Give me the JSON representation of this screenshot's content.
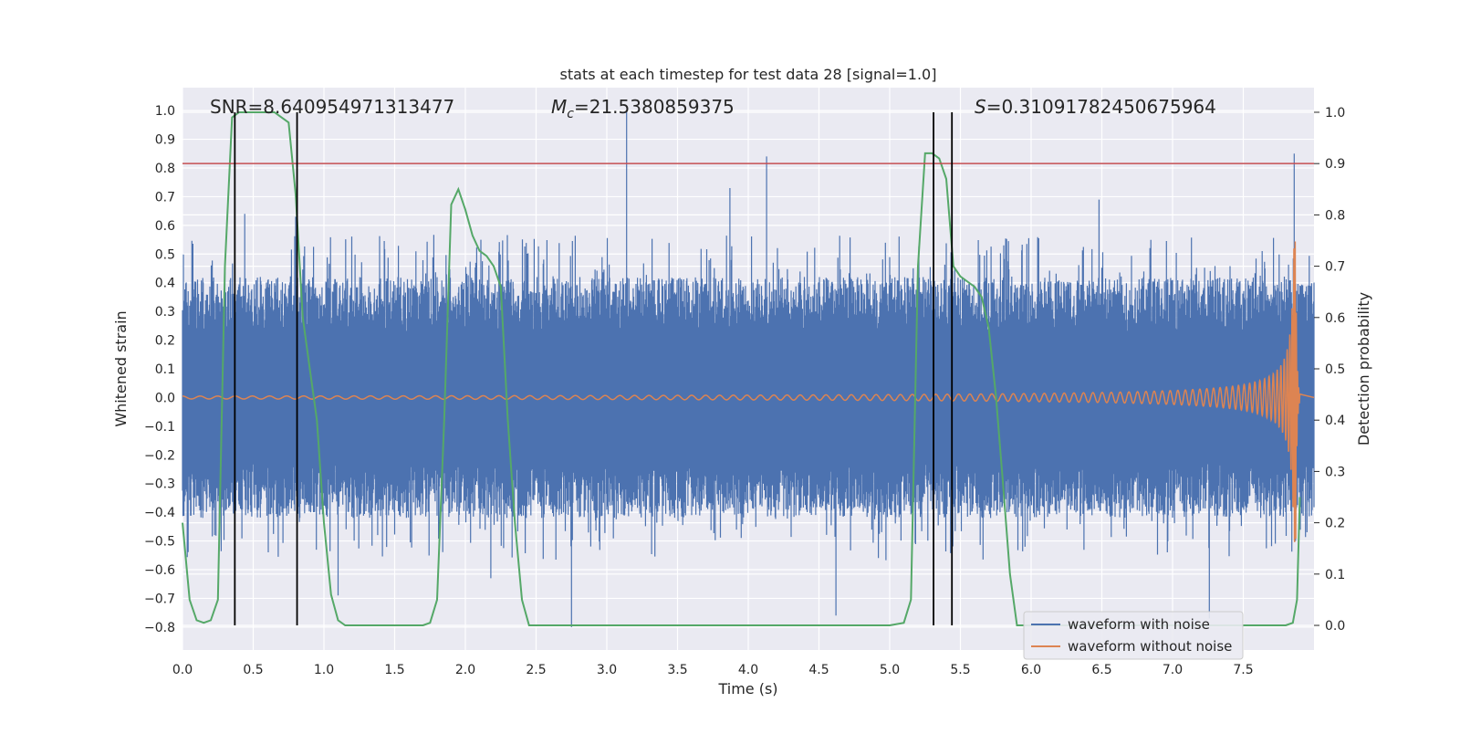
{
  "chart_data": {
    "type": "line",
    "title": "stats at each timestep for test data 28 [signal=1.0]",
    "xlabel": "Time (s)",
    "ylabel": "Whitened strain",
    "y2label": "Detection probability",
    "xlim": [
      0.0,
      8.0
    ],
    "ylim": [
      -0.88,
      1.08
    ],
    "y2lim": [
      -0.048,
      1.048
    ],
    "x_ticks": [
      "0.0",
      "0.5",
      "1.0",
      "1.5",
      "2.0",
      "2.5",
      "3.0",
      "3.5",
      "4.0",
      "4.5",
      "5.0",
      "5.5",
      "6.0",
      "6.5",
      "7.0",
      "7.5"
    ],
    "y_ticks": [
      "−0.8",
      "−0.7",
      "−0.6",
      "−0.5",
      "−0.4",
      "−0.3",
      "−0.2",
      "−0.1",
      "0.0",
      "0.1",
      "0.2",
      "0.3",
      "0.4",
      "0.5",
      "0.6",
      "0.7",
      "0.8",
      "0.9",
      "1.0"
    ],
    "y2_ticks": [
      "0.0",
      "0.1",
      "0.2",
      "0.3",
      "0.4",
      "0.5",
      "0.6",
      "0.7",
      "0.8",
      "0.9",
      "1.0"
    ],
    "grid": true,
    "legend_position": "lower-right",
    "annotations": {
      "snr": "SNR=8.640954971313477",
      "mc_symbol": "M",
      "mc_sub": "c",
      "mc_value": "=21.5380859375",
      "s_symbol": "S",
      "s_value": "=0.31091782450675964"
    },
    "threshold_probability": 0.9,
    "detection_windows": [
      [
        0.37,
        0.81
      ],
      [
        5.31,
        5.44
      ]
    ],
    "series": [
      {
        "name": "waveform with noise",
        "color": "#4c72b0",
        "style": "noise",
        "x_range": [
          0.0,
          8.0
        ],
        "typical_band": [
          -0.42,
          0.42
        ],
        "peaks": [
          {
            "x": 0.05,
            "y": 0.3
          },
          {
            "x": 0.44,
            "y": 0.64
          },
          {
            "x": 0.8,
            "y": 0.63
          },
          {
            "x": 1.1,
            "y": -0.69
          },
          {
            "x": 2.11,
            "y": 0.55
          },
          {
            "x": 2.18,
            "y": -0.63
          },
          {
            "x": 2.75,
            "y": -0.8
          },
          {
            "x": 3.14,
            "y": 1.0
          },
          {
            "x": 3.87,
            "y": 0.73
          },
          {
            "x": 4.13,
            "y": 0.84
          },
          {
            "x": 4.62,
            "y": -0.76
          },
          {
            "x": 6.48,
            "y": 0.69
          },
          {
            "x": 7.26,
            "y": -0.77
          },
          {
            "x": 7.86,
            "y": 0.85
          },
          {
            "x": 7.87,
            "y": -0.5
          }
        ]
      },
      {
        "name": "waveform without noise",
        "color": "#dd8452",
        "style": "chirp",
        "x_range": [
          0.0,
          7.9
        ],
        "amplitude_start": 0.005,
        "amplitude_peak": 0.56,
        "merger_time": 7.87
      },
      {
        "name": "Detection probability",
        "color": "#55a868",
        "axis": "right",
        "x": [
          0.0,
          0.05,
          0.1,
          0.15,
          0.2,
          0.25,
          0.3,
          0.35,
          0.4,
          0.45,
          0.5,
          0.55,
          0.6,
          0.65,
          0.7,
          0.75,
          0.8,
          0.85,
          0.9,
          0.95,
          1.0,
          1.05,
          1.1,
          1.15,
          1.2,
          1.25,
          1.3,
          1.35,
          1.4,
          1.5,
          1.6,
          1.7,
          1.75,
          1.8,
          1.85,
          1.9,
          1.95,
          2.0,
          2.05,
          2.1,
          2.15,
          2.2,
          2.25,
          2.3,
          2.35,
          2.4,
          2.45,
          2.5,
          2.55,
          2.6,
          2.65,
          2.7,
          2.8,
          3.0,
          3.5,
          4.0,
          4.5,
          5.0,
          5.1,
          5.15,
          5.2,
          5.25,
          5.3,
          5.35,
          5.4,
          5.45,
          5.5,
          5.55,
          5.6,
          5.65,
          5.7,
          5.75,
          5.8,
          5.85,
          5.9,
          5.95,
          6.0,
          6.05,
          6.1,
          6.2,
          6.5,
          7.0,
          7.5,
          7.8,
          7.85,
          7.88,
          7.9
        ],
        "y": [
          0.2,
          0.05,
          0.01,
          0.005,
          0.01,
          0.05,
          0.7,
          0.99,
          1.0,
          1.0,
          1.0,
          1.0,
          1.0,
          1.0,
          0.99,
          0.98,
          0.84,
          0.6,
          0.5,
          0.4,
          0.2,
          0.06,
          0.01,
          0.0,
          0.0,
          0.0,
          0.0,
          0.0,
          0.0,
          0.0,
          0.0,
          0.0,
          0.005,
          0.05,
          0.4,
          0.82,
          0.85,
          0.81,
          0.76,
          0.73,
          0.72,
          0.7,
          0.66,
          0.4,
          0.2,
          0.05,
          0.0,
          0.0,
          0.0,
          0.0,
          0.0,
          0.0,
          0.0,
          0.0,
          0.0,
          0.0,
          0.0,
          0.0,
          0.005,
          0.05,
          0.7,
          0.92,
          0.92,
          0.91,
          0.87,
          0.7,
          0.68,
          0.67,
          0.66,
          0.64,
          0.58,
          0.45,
          0.28,
          0.1,
          0.0,
          0.0,
          0.0,
          0.0,
          0.0,
          0.0,
          0.0,
          0.0,
          0.0,
          0.0,
          0.005,
          0.05,
          0.25
        ]
      }
    ]
  },
  "legend": {
    "items": [
      {
        "label": "waveform with noise",
        "color": "#4c72b0"
      },
      {
        "label": "waveform without noise",
        "color": "#dd8452"
      }
    ]
  },
  "colors": {
    "plot_bg": "#eaeaf2",
    "grid": "#ffffff",
    "threshold": "#c44e52",
    "window": "#000000",
    "text": "#262626"
  }
}
